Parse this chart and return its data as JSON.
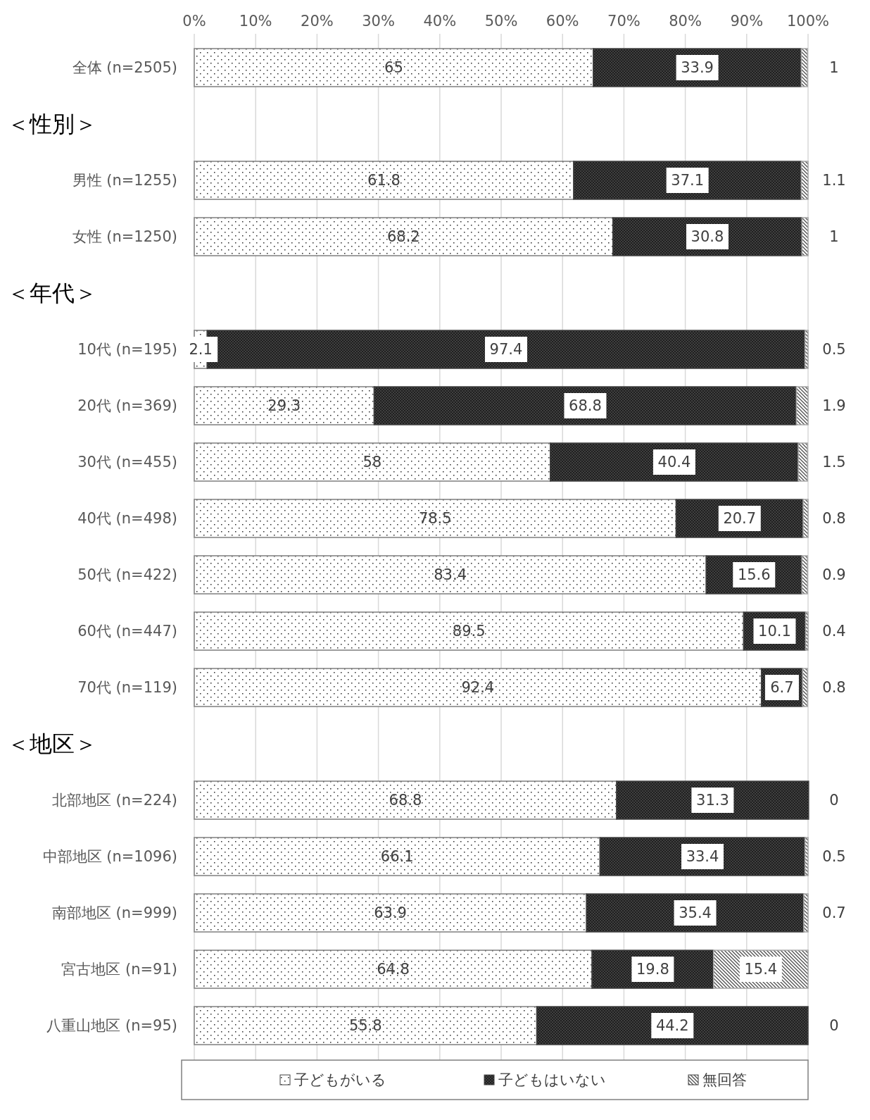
{
  "chart_data": {
    "type": "bar",
    "orientation": "horizontal",
    "stacked": true,
    "data_labels": true,
    "grid": "x",
    "legend": "bottom",
    "annotations": [
      "＜性別＞",
      "＜年代＞",
      "＜地区＞"
    ],
    "categories": [
      "全体 (n=2505)",
      null,
      "男性 (n=1255)",
      "女性 (n=1250)",
      null,
      "10代 (n=195)",
      "20代 (n=369)",
      "30代 (n=455)",
      "40代 (n=498)",
      "50代 (n=422)",
      "60代 (n=447)",
      "70代 (n=119)",
      null,
      "北部地区 (n=224)",
      "中部地区 (n=1096)",
      "南部地区 (n=999)",
      "宮古地区 (n=91)",
      "八重山地区 (n=95)"
    ],
    "series": [
      {
        "name": "子どもがいる",
        "color": "#7f7f7f",
        "values": [
          65,
          null,
          61.8,
          68.2,
          null,
          2.1,
          29.3,
          58,
          78.5,
          83.4,
          89.5,
          92.4,
          null,
          68.8,
          66.1,
          63.9,
          64.8,
          55.8
        ]
      },
      {
        "name": "子どもはいない",
        "color": "#404040",
        "values": [
          33.9,
          null,
          37.1,
          30.8,
          null,
          97.4,
          68.8,
          40.4,
          20.7,
          15.6,
          10.1,
          6.7,
          null,
          31.3,
          33.4,
          35.4,
          19.8,
          44.2
        ]
      },
      {
        "name": "無回答",
        "color": "#a6a6a6",
        "values": [
          1,
          null,
          1.1,
          1,
          null,
          0.5,
          1.9,
          1.5,
          0.8,
          0.9,
          0.4,
          0.8,
          null,
          0,
          0.5,
          0.7,
          15.4,
          0
        ]
      }
    ],
    "xlim": [
      0,
      100
    ],
    "xticks": [
      {
        "value": 0,
        "label": "0%"
      },
      {
        "value": 10,
        "label": "10%"
      },
      {
        "value": 20,
        "label": "20%"
      },
      {
        "value": 30,
        "label": "30%"
      },
      {
        "value": 40,
        "label": "40%"
      },
      {
        "value": 50,
        "label": "50%"
      },
      {
        "value": 60,
        "label": "60%"
      },
      {
        "value": 70,
        "label": "70%"
      },
      {
        "value": 80,
        "label": "80%"
      },
      {
        "value": 90,
        "label": "90%"
      },
      {
        "value": 100,
        "label": "100%"
      }
    ]
  }
}
